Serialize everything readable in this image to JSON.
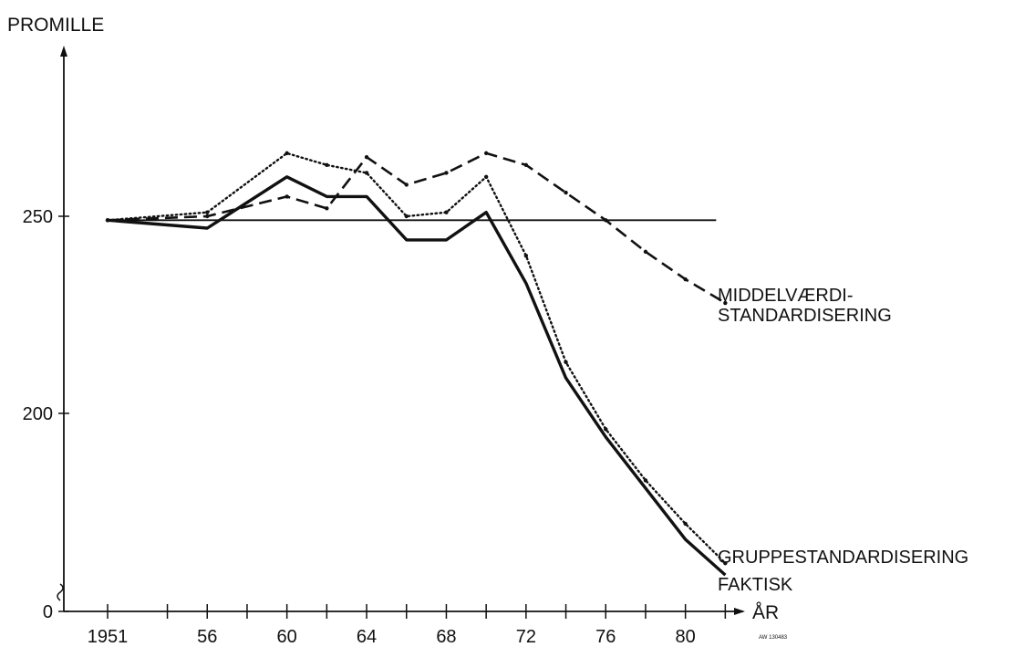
{
  "chart_data": {
    "type": "line",
    "ylabel": "PROMILLE",
    "xlabel": "ÅR",
    "x_tick_labels": [
      {
        "x": 1951,
        "label": "1951"
      },
      {
        "x": 1956,
        "label": "56"
      },
      {
        "x": 1960,
        "label": "60"
      },
      {
        "x": 1964,
        "label": "64"
      },
      {
        "x": 1968,
        "label": "68"
      },
      {
        "x": 1972,
        "label": "72"
      },
      {
        "x": 1976,
        "label": "76"
      },
      {
        "x": 1980,
        "label": "80"
      }
    ],
    "y_ticks": [
      {
        "y": 0,
        "label": "0"
      },
      {
        "y": 200,
        "label": "200"
      },
      {
        "y": 250,
        "label": "250"
      }
    ],
    "ylim": [
      0,
      300
    ],
    "xlim": [
      1951,
      1982
    ],
    "axis_break": true,
    "reference_line": {
      "y": 249
    },
    "grid": false,
    "series": [
      {
        "name": "MIDDELVÆRDI-\nSTANDARDISERING",
        "label_lines": [
          "MIDDELVÆRDI-",
          "STANDARDISERING"
        ],
        "style": "dashed",
        "x": [
          1951,
          1956,
          1960,
          1962,
          1964,
          1966,
          1968,
          1970,
          1972,
          1974,
          1976,
          1978,
          1980,
          1982
        ],
        "y": [
          249,
          250,
          255,
          252,
          265,
          258,
          261,
          266,
          263,
          256,
          249,
          241,
          234,
          228
        ]
      },
      {
        "name": "GRUPPESTANDARDISERING",
        "label_lines": [
          "GRUPPESTANDARDISERING"
        ],
        "style": "dotted",
        "x": [
          1951,
          1956,
          1960,
          1962,
          1964,
          1966,
          1968,
          1970,
          1972,
          1974,
          1976,
          1978,
          1980,
          1982
        ],
        "y": [
          249,
          251,
          266,
          263,
          261,
          250,
          251,
          260,
          240,
          213,
          196,
          183,
          172,
          162
        ]
      },
      {
        "name": "FAKTISK",
        "label_lines": [
          "FAKTISK"
        ],
        "style": "solid",
        "x": [
          1951,
          1956,
          1960,
          1962,
          1964,
          1966,
          1968,
          1970,
          1972,
          1974,
          1976,
          1978,
          1980,
          1982
        ],
        "y": [
          249,
          247,
          260,
          255,
          255,
          244,
          244,
          251,
          233,
          209,
          194,
          181,
          168,
          159
        ]
      }
    ],
    "footnote": "AW 130483"
  }
}
